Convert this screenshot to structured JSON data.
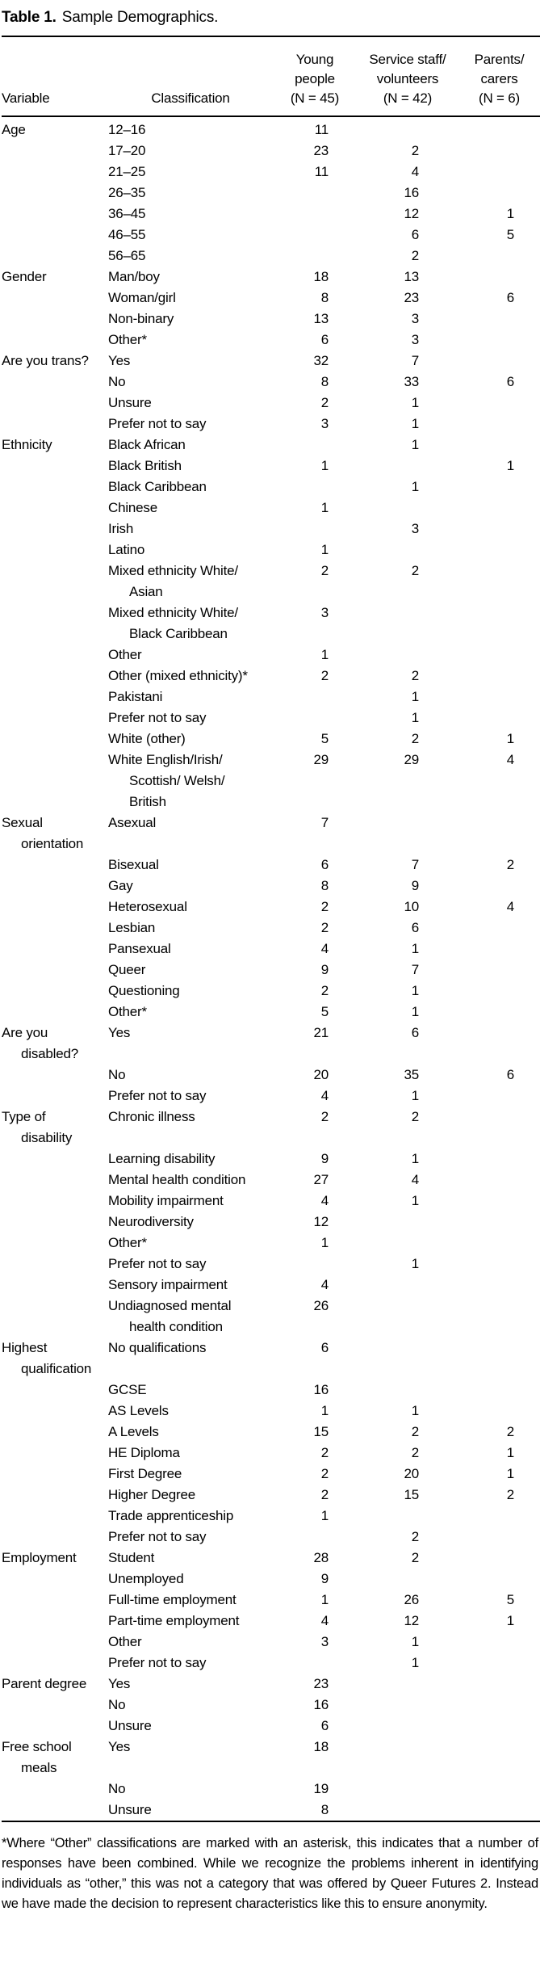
{
  "title": {
    "label": "Table 1.",
    "text": "Sample Demographics."
  },
  "colors": {
    "background": "#ffffff",
    "text": "#000000",
    "rule": "#000000"
  },
  "table": {
    "columns": {
      "variable": "Variable",
      "classification": "Classification",
      "young_people": "Young\npeople\n(N = 45)",
      "service_staff": "Service staff/\nvolunteers\n(N = 42)",
      "parents_carers": "Parents/\ncarers\n(N = 6)"
    },
    "sections": [
      {
        "variable": "Age",
        "rows": [
          {
            "classification": "12–16",
            "young_people": "11",
            "service_staff": "",
            "parents_carers": ""
          },
          {
            "classification": "17–20",
            "young_people": "23",
            "service_staff": "2",
            "parents_carers": ""
          },
          {
            "classification": "21–25",
            "young_people": "11",
            "service_staff": "4",
            "parents_carers": ""
          },
          {
            "classification": "26–35",
            "young_people": "",
            "service_staff": "16",
            "parents_carers": ""
          },
          {
            "classification": "36–45",
            "young_people": "",
            "service_staff": "12",
            "parents_carers": "1"
          },
          {
            "classification": "46–55",
            "young_people": "",
            "service_staff": "6",
            "parents_carers": "5"
          },
          {
            "classification": "56–65",
            "young_people": "",
            "service_staff": "2",
            "parents_carers": ""
          }
        ]
      },
      {
        "variable": "Gender",
        "rows": [
          {
            "classification": "Man/boy",
            "young_people": "18",
            "service_staff": "13",
            "parents_carers": ""
          },
          {
            "classification": "Woman/girl",
            "young_people": "8",
            "service_staff": "23",
            "parents_carers": "6"
          },
          {
            "classification": "Non-binary",
            "young_people": "13",
            "service_staff": "3",
            "parents_carers": ""
          },
          {
            "classification": "Other*",
            "young_people": "6",
            "service_staff": "3",
            "parents_carers": ""
          }
        ]
      },
      {
        "variable": "Are you trans?",
        "rows": [
          {
            "classification": "Yes",
            "young_people": "32",
            "service_staff": "7",
            "parents_carers": ""
          },
          {
            "classification": "No",
            "young_people": "8",
            "service_staff": "33",
            "parents_carers": "6"
          },
          {
            "classification": "Unsure",
            "young_people": "2",
            "service_staff": "1",
            "parents_carers": ""
          },
          {
            "classification": "Prefer not to say",
            "young_people": "3",
            "service_staff": "1",
            "parents_carers": ""
          }
        ]
      },
      {
        "variable": "Ethnicity",
        "rows": [
          {
            "classification": "Black African",
            "young_people": "",
            "service_staff": "1",
            "parents_carers": ""
          },
          {
            "classification": "Black British",
            "young_people": "1",
            "service_staff": "",
            "parents_carers": "1"
          },
          {
            "classification": "Black Caribbean",
            "young_people": "",
            "service_staff": "1",
            "parents_carers": ""
          },
          {
            "classification": "Chinese",
            "young_people": "1",
            "service_staff": "",
            "parents_carers": ""
          },
          {
            "classification": "Irish",
            "young_people": "",
            "service_staff": "3",
            "parents_carers": ""
          },
          {
            "classification": "Latino",
            "young_people": "1",
            "service_staff": "",
            "parents_carers": ""
          },
          {
            "classification": "Mixed ethnicity White/\nAsian",
            "young_people": "2",
            "service_staff": "2",
            "parents_carers": ""
          },
          {
            "classification": "Mixed ethnicity White/\nBlack Caribbean",
            "young_people": "3",
            "service_staff": "",
            "parents_carers": ""
          },
          {
            "classification": "Other",
            "young_people": "1",
            "service_staff": "",
            "parents_carers": ""
          },
          {
            "classification": "Other (mixed ethnicity)*",
            "young_people": "2",
            "service_staff": "2",
            "parents_carers": ""
          },
          {
            "classification": "Pakistani",
            "young_people": "",
            "service_staff": "1",
            "parents_carers": ""
          },
          {
            "classification": "Prefer not to say",
            "young_people": "",
            "service_staff": "1",
            "parents_carers": ""
          },
          {
            "classification": "White (other)",
            "young_people": "5",
            "service_staff": "2",
            "parents_carers": "1"
          },
          {
            "classification": "White English/Irish/\nScottish/ Welsh/\nBritish",
            "young_people": "29",
            "service_staff": "29",
            "parents_carers": "4"
          }
        ]
      },
      {
        "variable": "Sexual\norientation",
        "rows": [
          {
            "classification": "Asexual",
            "young_people": "7",
            "service_staff": "",
            "parents_carers": ""
          },
          {
            "classification": "Bisexual",
            "young_people": "6",
            "service_staff": "7",
            "parents_carers": "2"
          },
          {
            "classification": "Gay",
            "young_people": "8",
            "service_staff": "9",
            "parents_carers": ""
          },
          {
            "classification": "Heterosexual",
            "young_people": "2",
            "service_staff": "10",
            "parents_carers": "4"
          },
          {
            "classification": "Lesbian",
            "young_people": "2",
            "service_staff": "6",
            "parents_carers": ""
          },
          {
            "classification": "Pansexual",
            "young_people": "4",
            "service_staff": "1",
            "parents_carers": ""
          },
          {
            "classification": "Queer",
            "young_people": "9",
            "service_staff": "7",
            "parents_carers": ""
          },
          {
            "classification": "Questioning",
            "young_people": "2",
            "service_staff": "1",
            "parents_carers": ""
          },
          {
            "classification": "Other*",
            "young_people": "5",
            "service_staff": "1",
            "parents_carers": ""
          }
        ]
      },
      {
        "variable": "Are you\ndisabled?",
        "rows": [
          {
            "classification": "Yes",
            "young_people": "21",
            "service_staff": "6",
            "parents_carers": ""
          },
          {
            "classification": "No",
            "young_people": "20",
            "service_staff": "35",
            "parents_carers": "6"
          },
          {
            "classification": "Prefer not to say",
            "young_people": "4",
            "service_staff": "1",
            "parents_carers": ""
          }
        ]
      },
      {
        "variable": "Type of\ndisability",
        "rows": [
          {
            "classification": "Chronic illness",
            "young_people": "2",
            "service_staff": "2",
            "parents_carers": ""
          },
          {
            "classification": "Learning disability",
            "young_people": "9",
            "service_staff": "1",
            "parents_carers": ""
          },
          {
            "classification": "Mental health condition",
            "young_people": "27",
            "service_staff": "4",
            "parents_carers": ""
          },
          {
            "classification": "Mobility impairment",
            "young_people": "4",
            "service_staff": "1",
            "parents_carers": ""
          },
          {
            "classification": "Neurodiversity",
            "young_people": "12",
            "service_staff": "",
            "parents_carers": ""
          },
          {
            "classification": "Other*",
            "young_people": "1",
            "service_staff": "",
            "parents_carers": ""
          },
          {
            "classification": "Prefer not to say",
            "young_people": "",
            "service_staff": "1",
            "parents_carers": ""
          },
          {
            "classification": "Sensory impairment",
            "young_people": "4",
            "service_staff": "",
            "parents_carers": ""
          },
          {
            "classification": "Undiagnosed mental\nhealth condition",
            "young_people": "26",
            "service_staff": "",
            "parents_carers": ""
          }
        ]
      },
      {
        "variable": "Highest\nqualification",
        "rows": [
          {
            "classification": "No qualifications",
            "young_people": "6",
            "service_staff": "",
            "parents_carers": ""
          },
          {
            "classification": "GCSE",
            "young_people": "16",
            "service_staff": "",
            "parents_carers": ""
          },
          {
            "classification": "AS Levels",
            "young_people": "1",
            "service_staff": "1",
            "parents_carers": ""
          },
          {
            "classification": "A Levels",
            "young_people": "15",
            "service_staff": "2",
            "parents_carers": "2"
          },
          {
            "classification": "HE Diploma",
            "young_people": "2",
            "service_staff": "2",
            "parents_carers": "1"
          },
          {
            "classification": "First Degree",
            "young_people": "2",
            "service_staff": "20",
            "parents_carers": "1"
          },
          {
            "classification": "Higher Degree",
            "young_people": "2",
            "service_staff": "15",
            "parents_carers": "2"
          },
          {
            "classification": "Trade apprenticeship",
            "young_people": "1",
            "service_staff": "",
            "parents_carers": ""
          },
          {
            "classification": "Prefer not to say",
            "young_people": "",
            "service_staff": "2",
            "parents_carers": ""
          }
        ]
      },
      {
        "variable": "Employment",
        "rows": [
          {
            "classification": "Student",
            "young_people": "28",
            "service_staff": "2",
            "parents_carers": ""
          },
          {
            "classification": "Unemployed",
            "young_people": "9",
            "service_staff": "",
            "parents_carers": ""
          },
          {
            "classification": "Full-time employment",
            "young_people": "1",
            "service_staff": "26",
            "parents_carers": "5"
          },
          {
            "classification": "Part-time employment",
            "young_people": "4",
            "service_staff": "12",
            "parents_carers": "1"
          },
          {
            "classification": "Other",
            "young_people": "3",
            "service_staff": "1",
            "parents_carers": ""
          },
          {
            "classification": "Prefer not to say",
            "young_people": "",
            "service_staff": "1",
            "parents_carers": ""
          }
        ]
      },
      {
        "variable": "Parent degree",
        "rows": [
          {
            "classification": "Yes",
            "young_people": "23",
            "service_staff": "",
            "parents_carers": ""
          },
          {
            "classification": "No",
            "young_people": "16",
            "service_staff": "",
            "parents_carers": ""
          },
          {
            "classification": "Unsure",
            "young_people": "6",
            "service_staff": "",
            "parents_carers": ""
          }
        ]
      },
      {
        "variable": "Free school\nmeals",
        "rows": [
          {
            "classification": "Yes",
            "young_people": "18",
            "service_staff": "",
            "parents_carers": ""
          },
          {
            "classification": "No",
            "young_people": "19",
            "service_staff": "",
            "parents_carers": ""
          },
          {
            "classification": "Unsure",
            "young_people": "8",
            "service_staff": "",
            "parents_carers": ""
          }
        ]
      }
    ]
  },
  "footnote": "*Where “Other” classifications are marked with an asterisk, this indicates that a number of responses have been combined. While we recognize the problems inherent in identifying individuals as “other,” this was not a category that was offered by Queer Futures 2. Instead we have made the decision to represent characteristics like this to ensure anonymity."
}
